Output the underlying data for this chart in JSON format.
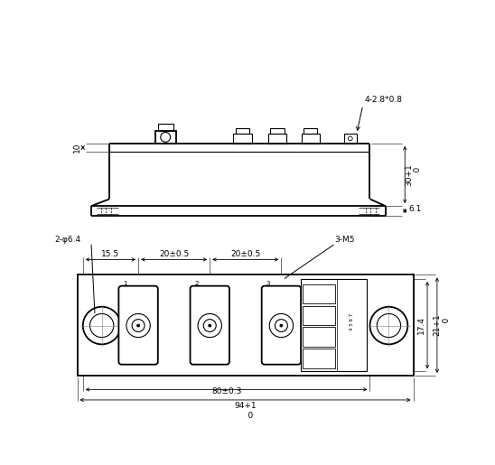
{
  "bg_color": "#ffffff",
  "line_color": "#000000",
  "fig_width": 5.48,
  "fig_height": 5.15,
  "dpi": 100,
  "annotations": {
    "four_holes": "4-2.8*0.8",
    "dim_10": "10",
    "dim_30": "30+1\n    0",
    "dim_6p1": "6.1",
    "two_holes": "2-φ6.4",
    "dim_15p5": "15.5",
    "dim_20_1": "20±0.5",
    "dim_20_2": "20±0.5",
    "three_m5": "3-M5",
    "dim_17p4": "17.4",
    "dim_21": "21+1\n    0",
    "dim_80": "80±0.3",
    "dim_94": "94+1\n    0"
  }
}
